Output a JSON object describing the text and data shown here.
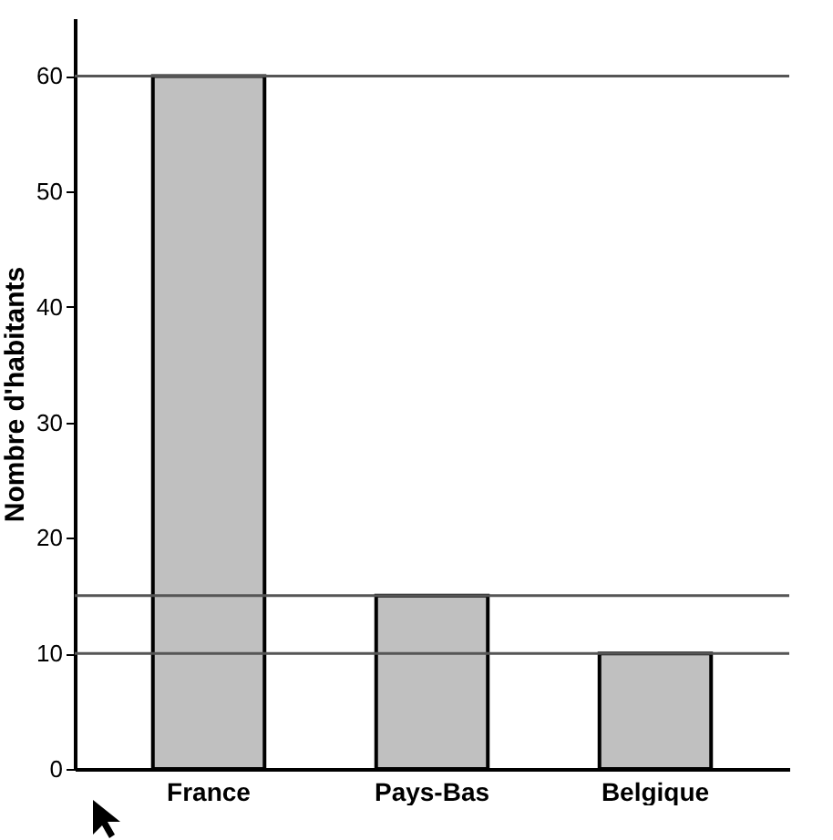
{
  "chart_data": {
    "type": "bar",
    "ylabel": "Nombre d'habitants",
    "categories": [
      "France",
      "Pays-Bas",
      "Belgique"
    ],
    "values": [
      60,
      15,
      10
    ],
    "color": "#c0c0c0",
    "ylim": [
      0,
      65
    ],
    "yticks": [
      0,
      10,
      20,
      30,
      40,
      50,
      60
    ],
    "grid": false,
    "ref_lines": [
      {
        "axis": "y",
        "value": 60
      },
      {
        "axis": "y",
        "value": 15
      },
      {
        "axis": "y",
        "value": 10
      }
    ]
  }
}
